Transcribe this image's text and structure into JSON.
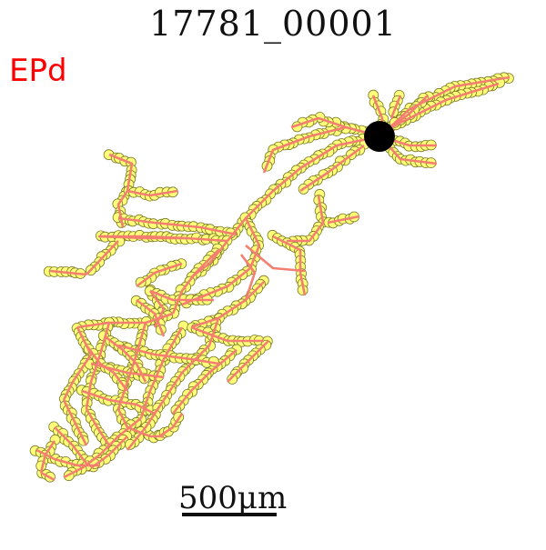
{
  "title": "17781_00001",
  "region_label": "EPd",
  "scale_bar_label": "500µm",
  "colors": {
    "region": "#ff0000",
    "trace": "#f47f70",
    "node_fill": "#ffff7a",
    "node_stroke": "#7a7a2a",
    "soma": "#000000"
  }
}
